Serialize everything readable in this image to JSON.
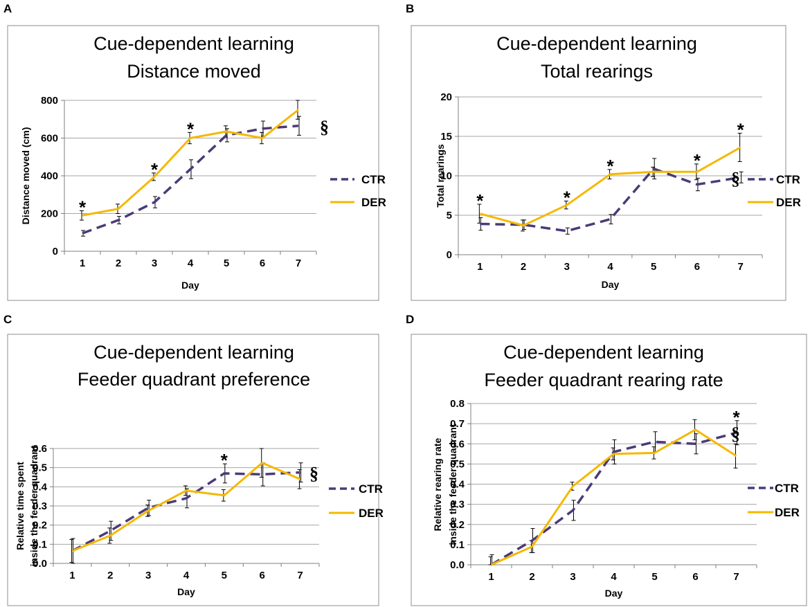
{
  "colors": {
    "ctr": "#4b3a78",
    "der": "#f5b800",
    "grid": "#a6a6a6",
    "frame": "#8c8c8c"
  },
  "chart_data": [
    {
      "letter": "A",
      "type": "line",
      "title_lines": [
        "Cue-dependent learning",
        "Distance moved"
      ],
      "xlabel": "Day",
      "ylabel_lines": [
        "Distance moved (cm)"
      ],
      "categories": [
        "1",
        "2",
        "3",
        "4",
        "5",
        "6",
        "7"
      ],
      "ylim": [
        0,
        800
      ],
      "yticks": [
        "0",
        "200",
        "400",
        "600",
        "800"
      ],
      "series": [
        {
          "name": "CTR",
          "style": "dashed",
          "values": [
            95,
            165,
            260,
            435,
            615,
            650,
            665
          ],
          "err": [
            15,
            20,
            30,
            50,
            35,
            40,
            50
          ]
        },
        {
          "name": "DER",
          "style": "solid",
          "values": [
            190,
            225,
            395,
            600,
            635,
            600,
            750
          ],
          "err": [
            25,
            25,
            20,
            30,
            30,
            30,
            50
          ]
        }
      ],
      "significance": [
        {
          "day_index": 0,
          "label": "*"
        },
        {
          "day_index": 2,
          "label": "*"
        },
        {
          "day_index": 3,
          "label": "*"
        }
      ],
      "section_mark": "§"
    },
    {
      "letter": "B",
      "type": "line",
      "title_lines": [
        "Cue-dependent learning",
        "Total rearings"
      ],
      "xlabel": "Day",
      "ylabel_lines": [
        "Total rearings"
      ],
      "categories": [
        "1",
        "2",
        "3",
        "4",
        "5",
        "6",
        "7"
      ],
      "ylim": [
        0,
        20
      ],
      "yticks": [
        "0",
        "5",
        "10",
        "15",
        "20"
      ],
      "series": [
        {
          "name": "CTR",
          "style": "dashed",
          "values": [
            3.9,
            3.8,
            3.0,
            4.5,
            10.9,
            8.9,
            9.8
          ],
          "err": [
            0.8,
            0.6,
            0.4,
            0.6,
            1.3,
            0.8,
            0.7
          ]
        },
        {
          "name": "DER",
          "style": "solid",
          "values": [
            5.2,
            3.7,
            6.3,
            10.2,
            10.5,
            10.5,
            13.6
          ],
          "err": [
            1.2,
            0.7,
            0.5,
            0.6,
            0.6,
            1.0,
            1.8
          ]
        }
      ],
      "significance": [
        {
          "day_index": 0,
          "label": "*"
        },
        {
          "day_index": 2,
          "label": "*"
        },
        {
          "day_index": 3,
          "label": "*"
        },
        {
          "day_index": 5,
          "label": "*"
        },
        {
          "day_index": 6,
          "label": "*"
        }
      ],
      "section_mark": "§"
    },
    {
      "letter": "C",
      "type": "line",
      "title_lines": [
        "Cue-dependent learning",
        "Feeder quadrant preference"
      ],
      "xlabel": "Day",
      "ylabel_lines": [
        "Relative time spent",
        "inside the feeder quadrant"
      ],
      "categories": [
        "1",
        "2",
        "3",
        "4",
        "5",
        "6",
        "7"
      ],
      "ylim": [
        0,
        0.6
      ],
      "yticks": [
        "0.0",
        "0.1",
        "0.2",
        "0.3",
        "0.4",
        "0.5",
        "0.6"
      ],
      "series": [
        {
          "name": "CTR",
          "style": "dashed",
          "values": [
            0.065,
            0.17,
            0.29,
            0.34,
            0.47,
            0.465,
            0.475
          ],
          "err": [
            0.065,
            0.05,
            0.04,
            0.05,
            0.05,
            0.06,
            0.05
          ]
        },
        {
          "name": "DER",
          "style": "solid",
          "values": [
            0.065,
            0.145,
            0.275,
            0.38,
            0.355,
            0.525,
            0.44
          ],
          "err": [
            0.06,
            0.04,
            0.03,
            0.025,
            0.03,
            0.075,
            0.05
          ]
        }
      ],
      "significance": [
        {
          "day_index": 4,
          "label": "*"
        }
      ],
      "section_mark": "§"
    },
    {
      "letter": "D",
      "type": "line",
      "title_lines": [
        "Cue-dependent learning",
        "Feeder quadrant rearing rate"
      ],
      "xlabel": "Day",
      "ylabel_lines": [
        "Relative rearing rate",
        "inside the feeder quadrant"
      ],
      "categories": [
        "1",
        "2",
        "3",
        "4",
        "5",
        "6",
        "7"
      ],
      "ylim": [
        0,
        0.8
      ],
      "yticks": [
        "0.0",
        "0.1",
        "0.2",
        "0.3",
        "0.4",
        "0.5",
        "0.6",
        "0.7",
        "0.8"
      ],
      "series": [
        {
          "name": "CTR",
          "style": "dashed",
          "values": [
            0.0,
            0.12,
            0.27,
            0.56,
            0.61,
            0.6,
            0.655
          ],
          "err": [
            0.05,
            0.06,
            0.05,
            0.06,
            0.05,
            0.05,
            0.06
          ]
        },
        {
          "name": "DER",
          "style": "solid",
          "values": [
            0.0,
            0.09,
            0.39,
            0.55,
            0.555,
            0.67,
            0.54
          ],
          "err": [
            0.04,
            0.03,
            0.02,
            0.03,
            0.03,
            0.05,
            0.06
          ]
        }
      ],
      "significance": [
        {
          "day_index": 6,
          "label": "*"
        }
      ],
      "section_mark": "§"
    }
  ]
}
